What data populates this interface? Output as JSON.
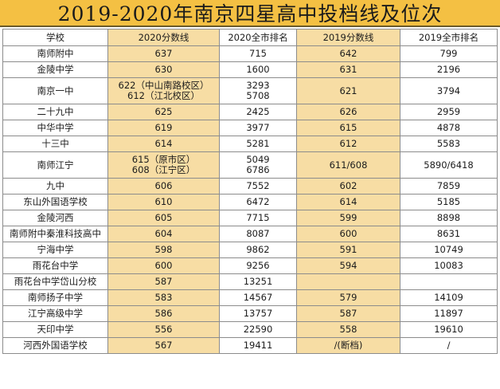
{
  "title": "2019-2020年南京四星高中投档线及位次",
  "headers": {
    "school": "学校",
    "score_2020": "2020分数线",
    "rank_2020": "2020全市排名",
    "score_2019": "2019分数线",
    "rank_2019": "2019全市排名"
  },
  "rows": [
    {
      "school": "南师附中",
      "score_2020": [
        "637"
      ],
      "rank_2020": [
        "715"
      ],
      "score_2019": "642",
      "rank_2019": "799"
    },
    {
      "school": "金陵中学",
      "score_2020": [
        "630"
      ],
      "rank_2020": [
        "1600"
      ],
      "score_2019": "631",
      "rank_2019": "2196"
    },
    {
      "school": "南京一中",
      "score_2020": [
        "622（中山南路校区）",
        "612（江北校区）"
      ],
      "rank_2020": [
        "3293",
        "5708"
      ],
      "score_2019": "621",
      "rank_2019": "3794"
    },
    {
      "school": "二十九中",
      "score_2020": [
        "625"
      ],
      "rank_2020": [
        "2425"
      ],
      "score_2019": "626",
      "rank_2019": "2959"
    },
    {
      "school": "中华中学",
      "score_2020": [
        "619"
      ],
      "rank_2020": [
        "3977"
      ],
      "score_2019": "615",
      "rank_2019": "4878"
    },
    {
      "school": "十三中",
      "score_2020": [
        "614"
      ],
      "rank_2020": [
        "5281"
      ],
      "score_2019": "612",
      "rank_2019": "5583"
    },
    {
      "school": "南师江宁",
      "score_2020": [
        "615（原市区）",
        "608（江宁区）"
      ],
      "rank_2020": [
        "5049",
        "6786"
      ],
      "score_2019": "611/608",
      "rank_2019": "5890/6418"
    },
    {
      "school": "九中",
      "score_2020": [
        "606"
      ],
      "rank_2020": [
        "7552"
      ],
      "score_2019": "602",
      "rank_2019": "7859"
    },
    {
      "school": "东山外国语学校",
      "score_2020": [
        "610"
      ],
      "rank_2020": [
        "6472"
      ],
      "score_2019": "614",
      "rank_2019": "5185"
    },
    {
      "school": "金陵河西",
      "score_2020": [
        "605"
      ],
      "rank_2020": [
        "7715"
      ],
      "score_2019": "599",
      "rank_2019": "8898"
    },
    {
      "school": "南师附中秦淮科技高中",
      "score_2020": [
        "604"
      ],
      "rank_2020": [
        "8087"
      ],
      "score_2019": "600",
      "rank_2019": "8631"
    },
    {
      "school": "宁海中学",
      "score_2020": [
        "598"
      ],
      "rank_2020": [
        "9862"
      ],
      "score_2019": "591",
      "rank_2019": "10749"
    },
    {
      "school": "雨花台中学",
      "score_2020": [
        "600"
      ],
      "rank_2020": [
        "9256"
      ],
      "score_2019": "594",
      "rank_2019": "10083"
    },
    {
      "school": "雨花台中学岱山分校",
      "score_2020": [
        "587"
      ],
      "rank_2020": [
        "13251"
      ],
      "score_2019": "",
      "rank_2019": ""
    },
    {
      "school": "南师扬子中学",
      "score_2020": [
        "583"
      ],
      "rank_2020": [
        "14567"
      ],
      "score_2019": "579",
      "rank_2019": "14109"
    },
    {
      "school": "江宁高级中学",
      "score_2020": [
        "586"
      ],
      "rank_2020": [
        "13757"
      ],
      "score_2019": "587",
      "rank_2019": "11897"
    },
    {
      "school": "天印中学",
      "score_2020": [
        "556"
      ],
      "rank_2020": [
        "22590"
      ],
      "score_2019": "558",
      "rank_2019": "19610"
    },
    {
      "school": "河西外国语学校",
      "score_2020": [
        "567"
      ],
      "rank_2020": [
        "19411"
      ],
      "score_2019": "/(断档)",
      "rank_2019": "/"
    }
  ],
  "colors": {
    "title_bg": "#f4c043",
    "highlight_column": "#f7dda4",
    "border": "#8c8c8c"
  }
}
